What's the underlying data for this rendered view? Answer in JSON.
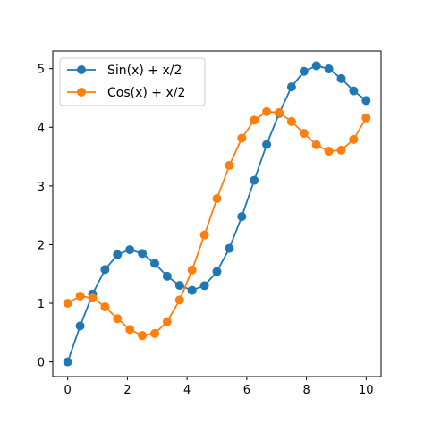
{
  "chart_data": {
    "type": "line",
    "title": "",
    "xlabel": "",
    "ylabel": "",
    "xlim": [
      -0.5,
      10.5
    ],
    "ylim": [
      -0.25,
      5.3
    ],
    "xticks": [
      0,
      2,
      4,
      6,
      8,
      10
    ],
    "yticks": [
      0,
      1,
      2,
      3,
      4,
      5
    ],
    "grid": false,
    "legend": "upper-left",
    "x": [
      0,
      0.4167,
      0.8333,
      1.25,
      1.6667,
      2.0833,
      2.5,
      2.9167,
      3.3333,
      3.75,
      4.1667,
      4.5833,
      5.0,
      5.4167,
      5.8333,
      6.25,
      6.6667,
      7.0833,
      7.5,
      7.9167,
      8.3333,
      8.75,
      9.1667,
      9.5833,
      10.0
    ],
    "series": [
      {
        "name": "Sin(x) + x/2",
        "color": "#1f77b4",
        "values": [
          0.0,
          0.613,
          1.157,
          1.574,
          1.829,
          1.914,
          1.848,
          1.678,
          1.46,
          1.304,
          1.22,
          1.3,
          1.541,
          1.937,
          2.478,
          3.095,
          3.706,
          4.236,
          4.688,
          4.954,
          5.049,
          4.995,
          4.83,
          4.62,
          4.456
        ]
      },
      {
        "name": "Cos(x) + x/2",
        "color": "#ff7f0e",
        "values": [
          1.0,
          1.123,
          1.089,
          0.94,
          0.737,
          0.552,
          0.449,
          0.484,
          0.686,
          1.056,
          1.566,
          2.164,
          2.784,
          3.349,
          3.814,
          4.12,
          4.266,
          4.249,
          4.097,
          3.895,
          3.701,
          3.591,
          3.609,
          3.793,
          4.161
        ]
      }
    ]
  }
}
